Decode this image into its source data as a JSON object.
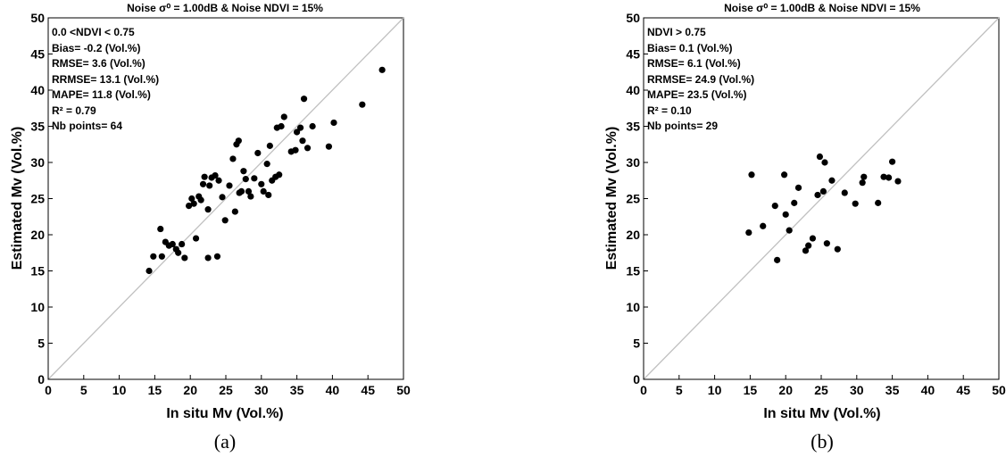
{
  "colors": {
    "marker": "#000000",
    "identity_line": "#c0c0c0",
    "axes": "#000000",
    "background": "#ffffff"
  },
  "chart_data": [
    {
      "type": "scatter",
      "title": "Noise σ⁰ = 1.00dB & Noise NDVI = 15%",
      "xlabel": "In situ Mv (Vol.%)",
      "ylabel": "Estimated Mv (Vol.%)",
      "xlim": [
        0,
        50
      ],
      "ylim": [
        0,
        50
      ],
      "xticks": [
        "0",
        "5",
        "10",
        "15",
        "20",
        "25",
        "30",
        "35",
        "40",
        "45",
        "50"
      ],
      "yticks": [
        "0",
        "5",
        "10",
        "15",
        "20",
        "25",
        "30",
        "35",
        "40",
        "45",
        "50"
      ],
      "grid": false,
      "identity_line": true,
      "caption": "(a)",
      "annotations": [
        "0.0 <NDVI < 0.75",
        "Bias= -0.2 (Vol.%)",
        "RMSE= 3.6 (Vol.%)",
        "RRMSE= 13.1 (Vol.%)",
        "MAPE= 11.8 (Vol.%)",
        "R² = 0.79",
        "Nb points= 64"
      ],
      "points": [
        [
          14.2,
          15.0
        ],
        [
          14.8,
          17.0
        ],
        [
          15.8,
          20.8
        ],
        [
          16.0,
          17.0
        ],
        [
          16.5,
          19.0
        ],
        [
          17.0,
          18.5
        ],
        [
          17.5,
          18.7
        ],
        [
          18.0,
          18.0
        ],
        [
          18.3,
          17.5
        ],
        [
          18.8,
          18.7
        ],
        [
          19.2,
          16.8
        ],
        [
          19.8,
          24.0
        ],
        [
          20.2,
          25.0
        ],
        [
          20.5,
          24.3
        ],
        [
          20.8,
          19.5
        ],
        [
          21.2,
          25.3
        ],
        [
          21.5,
          24.8
        ],
        [
          21.8,
          27.0
        ],
        [
          22.0,
          28.0
        ],
        [
          22.5,
          23.5
        ],
        [
          22.5,
          16.8
        ],
        [
          22.7,
          26.8
        ],
        [
          23.0,
          27.9
        ],
        [
          23.5,
          28.2
        ],
        [
          23.8,
          17.0
        ],
        [
          24.0,
          27.5
        ],
        [
          24.5,
          25.2
        ],
        [
          24.9,
          22.0
        ],
        [
          25.5,
          26.8
        ],
        [
          26.0,
          30.5
        ],
        [
          26.3,
          23.2
        ],
        [
          26.5,
          32.5
        ],
        [
          26.8,
          33.0
        ],
        [
          26.9,
          25.8
        ],
        [
          27.2,
          26.0
        ],
        [
          27.5,
          28.8
        ],
        [
          27.8,
          27.7
        ],
        [
          28.2,
          26.0
        ],
        [
          28.5,
          25.3
        ],
        [
          29.0,
          27.8
        ],
        [
          29.5,
          31.3
        ],
        [
          30.0,
          27.0
        ],
        [
          30.3,
          26.0
        ],
        [
          30.8,
          29.8
        ],
        [
          31.0,
          25.5
        ],
        [
          31.2,
          32.3
        ],
        [
          31.5,
          27.5
        ],
        [
          32.0,
          28.0
        ],
        [
          32.2,
          34.8
        ],
        [
          32.5,
          28.3
        ],
        [
          32.8,
          35.0
        ],
        [
          33.2,
          36.3
        ],
        [
          34.2,
          31.5
        ],
        [
          34.8,
          31.7
        ],
        [
          35.0,
          34.2
        ],
        [
          35.5,
          34.8
        ],
        [
          35.8,
          33.0
        ],
        [
          36.0,
          38.8
        ],
        [
          36.5,
          32.0
        ],
        [
          37.2,
          35.0
        ],
        [
          39.5,
          32.2
        ],
        [
          40.2,
          35.5
        ],
        [
          44.2,
          38.0
        ],
        [
          47.0,
          42.8
        ]
      ]
    },
    {
      "type": "scatter",
      "title": "Noise σ⁰ = 1.00dB & Noise NDVI = 15%",
      "xlabel": "In situ Mv (Vol.%)",
      "ylabel": "Estimated Mv (Vol.%)",
      "xlim": [
        0,
        50
      ],
      "ylim": [
        0,
        50
      ],
      "xticks": [
        "0",
        "5",
        "10",
        "15",
        "20",
        "25",
        "30",
        "35",
        "40",
        "45",
        "50"
      ],
      "yticks": [
        "0",
        "5",
        "10",
        "15",
        "20",
        "25",
        "30",
        "35",
        "40",
        "45",
        "50"
      ],
      "grid": false,
      "identity_line": true,
      "caption": "(b)",
      "annotations": [
        "NDVI > 0.75",
        "Bias= 0.1 (Vol.%)",
        "RMSE= 6.1 (Vol.%)",
        "RRMSE= 24.9 (Vol.%)",
        "MAPE= 23.5 (Vol.%)",
        "R² = 0.10",
        "Nb points= 29"
      ],
      "points": [
        [
          14.8,
          20.3
        ],
        [
          15.2,
          28.3
        ],
        [
          16.8,
          21.2
        ],
        [
          18.5,
          24.0
        ],
        [
          18.8,
          16.5
        ],
        [
          19.8,
          28.3
        ],
        [
          20.0,
          22.8
        ],
        [
          20.5,
          20.6
        ],
        [
          21.2,
          24.4
        ],
        [
          21.8,
          26.5
        ],
        [
          22.8,
          17.8
        ],
        [
          23.2,
          18.5
        ],
        [
          23.8,
          19.5
        ],
        [
          24.5,
          25.5
        ],
        [
          24.8,
          30.8
        ],
        [
          25.3,
          26.0
        ],
        [
          25.5,
          30.0
        ],
        [
          25.8,
          18.8
        ],
        [
          26.5,
          27.5
        ],
        [
          27.3,
          18.0
        ],
        [
          28.3,
          25.8
        ],
        [
          29.8,
          24.3
        ],
        [
          30.8,
          27.2
        ],
        [
          31.0,
          28.0
        ],
        [
          33.0,
          24.4
        ],
        [
          33.8,
          28.0
        ],
        [
          34.5,
          27.9
        ],
        [
          35.0,
          30.1
        ],
        [
          35.8,
          27.4
        ]
      ]
    }
  ]
}
